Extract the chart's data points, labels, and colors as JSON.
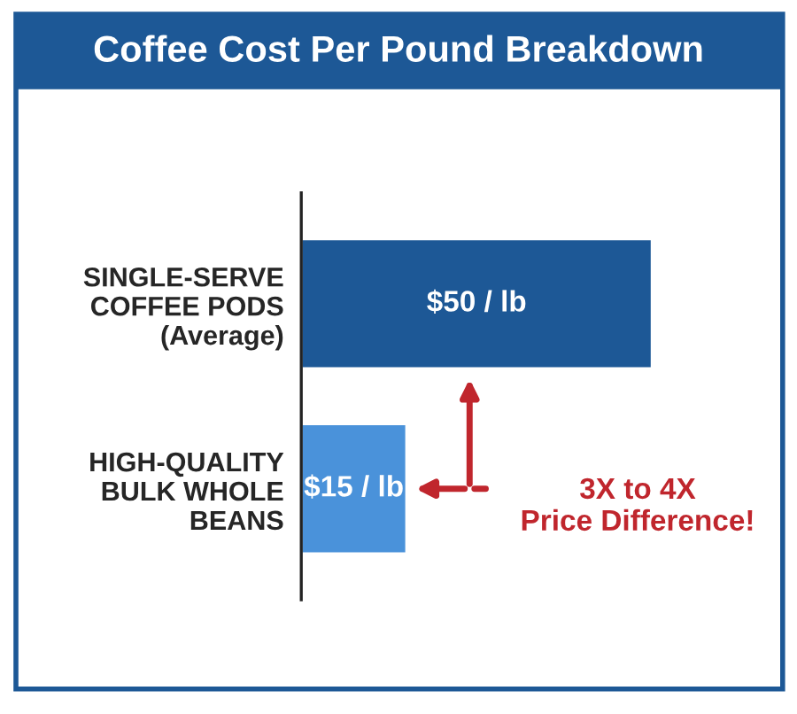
{
  "chart_data": {
    "type": "bar",
    "orientation": "horizontal",
    "title": "Coffee Cost Per Pound Breakdown",
    "categories": [
      "SINGLE-SERVE\nCOFFEE PODS\n(Average)",
      "HIGH-QUALITY\nBULK WHOLE\nBEANS"
    ],
    "values": [
      50,
      15
    ],
    "colors": [
      "#1d5896",
      "#4a92da"
    ],
    "value_labels": [
      "$50 / lb",
      "$15 / lb"
    ],
    "tick_labels": "y",
    "grid": false,
    "legend": false,
    "annotations": [
      "3X to 4X\nPrice Difference!"
    ]
  }
}
